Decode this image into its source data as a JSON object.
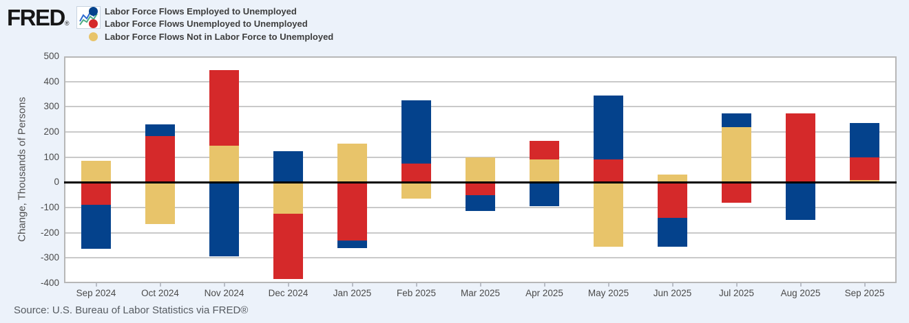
{
  "brand": {
    "logo_text": "FRED",
    "registered_mark": "®"
  },
  "source_note": "Source: U.S. Bureau of Labor Statistics via FRED®",
  "colors": {
    "background": "#ecf2fa",
    "plot_background": "#ffffff",
    "gridline": "#c9c9c9",
    "plot_border": "#b7b7b7",
    "zero_line": "#000000",
    "axis_text": "#4a4a4a",
    "legend_text": "#3d3d3d",
    "series_blue": "#04428c",
    "series_red": "#d5292a",
    "series_gold": "#e8c46a"
  },
  "chart_data": {
    "type": "bar",
    "stacked": true,
    "title": "",
    "xlabel": "",
    "ylabel": "Change, Thousands of Persons",
    "ylim": [
      -400,
      500
    ],
    "yticks": [
      500,
      400,
      300,
      200,
      100,
      0,
      -100,
      -200,
      -300,
      -400
    ],
    "grid": true,
    "zero_line": true,
    "legend_position": "top-left",
    "categories": [
      "Sep 2024",
      "Oct 2024",
      "Nov 2024",
      "Dec 2024",
      "Jan 2025",
      "Feb 2025",
      "Mar 2025",
      "Apr 2025",
      "May 2025",
      "Jun 2025",
      "Jul 2025",
      "Aug 2025",
      "Sep 2025"
    ],
    "series": [
      {
        "name": "Labor Force Flows Employed to Unemployed",
        "color": "#04428c",
        "values": [
          -175,
          45,
          -295,
          125,
          -30,
          250,
          -65,
          -95,
          255,
          -115,
          55,
          -150,
          135
        ]
      },
      {
        "name": "Labor Force Flows Unemployed to Unemployed",
        "color": "#d5292a",
        "values": [
          -90,
          185,
          300,
          -260,
          -230,
          75,
          -50,
          75,
          90,
          -140,
          -80,
          275,
          90
        ]
      },
      {
        "name": "Labor Force Flows Not in Labor Force to Unemployed",
        "color": "#e8c46a",
        "values": [
          85,
          -165,
          145,
          -125,
          155,
          -65,
          100,
          90,
          -255,
          30,
          220,
          0,
          10
        ]
      }
    ],
    "stack_order_from_baseline": [
      2,
      1,
      0
    ]
  }
}
